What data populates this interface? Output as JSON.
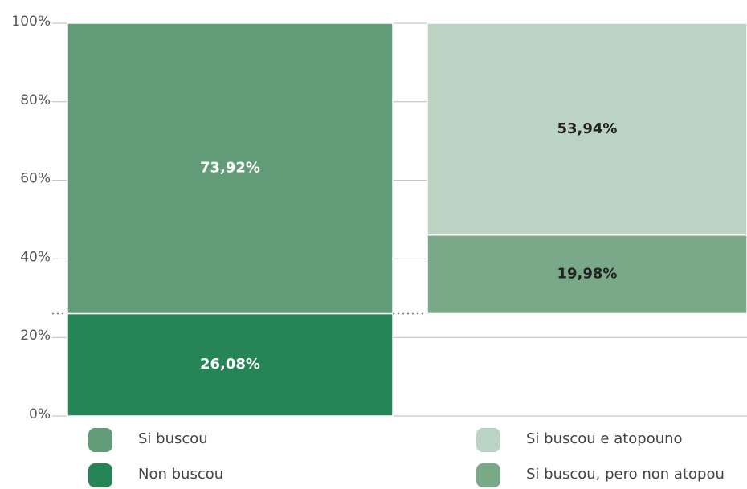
{
  "chart_data": {
    "type": "bar_of_bar",
    "ylim": [
      0,
      100
    ],
    "yticks": [
      {
        "value": 0,
        "label": "0%"
      },
      {
        "value": 20,
        "label": "20%"
      },
      {
        "value": 40,
        "label": "40%"
      },
      {
        "value": 60,
        "label": "60%"
      },
      {
        "value": 80,
        "label": "80%"
      },
      {
        "value": 100,
        "label": "100%"
      }
    ],
    "grid": true,
    "series": [
      {
        "name": "Non buscou",
        "color": "#268556",
        "values": [
          26.08
        ],
        "value_labels": [
          "26,08%"
        ]
      },
      {
        "name": "Si buscou",
        "color": "#629b78",
        "values": [
          73.92
        ],
        "value_labels": [
          "73,92%"
        ]
      }
    ],
    "breakdown": [
      {
        "name": "Si buscou, pero non atopou",
        "color": "#7aa98a",
        "values": [
          19.98
        ],
        "value_labels": [
          "19,98%"
        ]
      },
      {
        "name": "Si buscou e atopouno",
        "color": "#bbd3c3",
        "values": [
          53.94
        ],
        "value_labels": [
          "53,94%"
        ]
      }
    ]
  }
}
